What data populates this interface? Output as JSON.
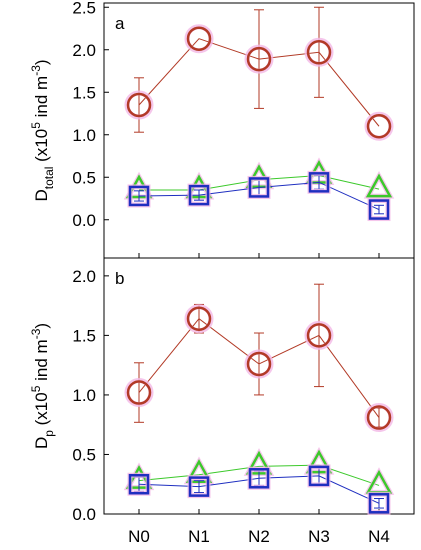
{
  "chart_data": [
    {
      "type": "line",
      "panel_label": "a",
      "ylabel": {
        "base": "D",
        "sub": "total",
        "unit_prefix": "(x10",
        "unit_exp": "5",
        "unit_mid": " ind m",
        "unit_exp2": "-3",
        "unit_suffix": ")"
      },
      "categories": [
        "N0",
        "N1",
        "N2",
        "N3",
        "N4"
      ],
      "ylim": [
        -0.45,
        2.55
      ],
      "yticks": [
        "0.0",
        "0.5",
        "1.0",
        "1.5",
        "2.0",
        "2.5"
      ],
      "series": [
        {
          "marker": "circle",
          "color": "#b23a26",
          "halo": "#f2b8e6",
          "values": [
            1.35,
            2.13,
            1.89,
            1.97,
            1.1
          ],
          "err": [
            0.32,
            0.0,
            0.58,
            0.53,
            0.0
          ]
        },
        {
          "marker": "triangle",
          "color": "#3cc92b",
          "halo": "#f2b8e6",
          "values": [
            0.35,
            0.35,
            0.47,
            0.52,
            0.36
          ],
          "err": [
            0.0,
            0.0,
            0.0,
            0.0,
            0.0
          ]
        },
        {
          "marker": "square",
          "color": "#1f2fc0",
          "halo": "#f2b8e6",
          "values": [
            0.28,
            0.29,
            0.38,
            0.44,
            0.12
          ],
          "err": [
            0.06,
            0.06,
            0.1,
            0.08,
            0.05
          ]
        }
      ]
    },
    {
      "type": "line",
      "panel_label": "b",
      "ylabel": {
        "base": "D",
        "sub": "p",
        "unit_prefix": "(x10",
        "unit_exp": "5",
        "unit_mid": " ind m",
        "unit_exp2": "-3",
        "unit_suffix": ")"
      },
      "categories": [
        "N0",
        "N1",
        "N2",
        "N3",
        "N4"
      ],
      "ylim": [
        0.0,
        2.15
      ],
      "yticks": [
        "0.0",
        "0.5",
        "1.0",
        "1.5",
        "2.0"
      ],
      "series": [
        {
          "marker": "circle",
          "color": "#b23a26",
          "halo": "#f2b8e6",
          "values": [
            1.02,
            1.64,
            1.26,
            1.5,
            0.81
          ],
          "err": [
            0.25,
            0.12,
            0.26,
            0.43,
            0.08
          ]
        },
        {
          "marker": "triangle",
          "color": "#3cc92b",
          "halo": "#f2b8e6",
          "values": [
            0.28,
            0.33,
            0.4,
            0.41,
            0.24
          ],
          "err": [
            0.0,
            0.0,
            0.0,
            0.0,
            0.0
          ]
        },
        {
          "marker": "square",
          "color": "#1f2fc0",
          "halo": "#f2b8e6",
          "values": [
            0.25,
            0.23,
            0.3,
            0.32,
            0.09
          ],
          "err": [
            0.06,
            0.05,
            0.06,
            0.07,
            0.04
          ]
        }
      ]
    }
  ]
}
